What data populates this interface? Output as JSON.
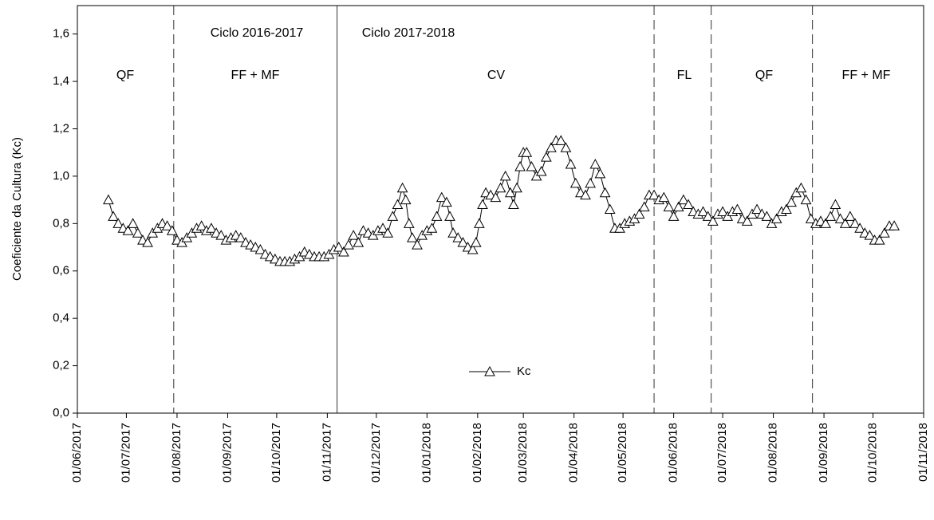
{
  "chart_data": {
    "type": "line",
    "ylabel": "Coeficiente da Cultura (Kc)",
    "xlim": [
      "01/06/2017",
      "01/11/2018"
    ],
    "xticks": [
      "01/06/2017",
      "01/07/2017",
      "01/08/2017",
      "01/09/2017",
      "01/10/2017",
      "01/11/2017",
      "01/12/2017",
      "01/01/2018",
      "01/02/2018",
      "01/03/2018",
      "01/04/2018",
      "01/05/2018",
      "01/06/2018",
      "01/07/2018",
      "01/08/2018",
      "01/09/2018",
      "01/10/2018",
      "01/11/2018"
    ],
    "ylim": [
      0,
      1.72
    ],
    "yticks": [
      {
        "value": 0,
        "label": "0,0"
      },
      {
        "value": 0.2,
        "label": "0,2"
      },
      {
        "value": 0.4,
        "label": "0,4"
      },
      {
        "value": 0.6,
        "label": "0,6"
      },
      {
        "value": 0.8,
        "label": "0,8"
      },
      {
        "value": 1.0,
        "label": "1,0"
      },
      {
        "value": 1.2,
        "label": "1,2"
      },
      {
        "value": 1.4,
        "label": "1,4"
      },
      {
        "value": 1.6,
        "label": "1,6"
      }
    ],
    "legend": "lower center",
    "phase_lines": [
      {
        "x": "30/07/2017",
        "style": "dashed"
      },
      {
        "x": "07/11/2017",
        "style": "solid"
      },
      {
        "x": "20/05/2018",
        "style": "dashed"
      },
      {
        "x": "24/06/2018",
        "style": "dashed"
      },
      {
        "x": "25/08/2018",
        "style": "dashed"
      }
    ],
    "annotations": [
      "QF",
      "FF + MF",
      "Ciclo 2016-2017",
      "Ciclo 2017-2018",
      "CV",
      "FL",
      "QF",
      "FF + MF"
    ],
    "x": [
      "20/06/2017",
      "23/06/2017",
      "26/06/2017",
      "29/06/2017",
      "02/07/2017",
      "05/07/2017",
      "08/07/2017",
      "11/07/2017",
      "14/07/2017",
      "17/07/2017",
      "20/07/2017",
      "23/07/2017",
      "26/07/2017",
      "29/07/2017",
      "01/08/2017",
      "04/08/2017",
      "07/08/2017",
      "10/08/2017",
      "13/08/2017",
      "16/08/2017",
      "19/08/2017",
      "22/08/2017",
      "25/08/2017",
      "28/08/2017",
      "31/08/2017",
      "03/09/2017",
      "06/09/2017",
      "09/09/2017",
      "12/09/2017",
      "15/09/2017",
      "18/09/2017",
      "21/09/2017",
      "24/09/2017",
      "27/09/2017",
      "30/09/2017",
      "03/10/2017",
      "06/10/2017",
      "09/10/2017",
      "12/10/2017",
      "15/10/2017",
      "18/10/2017",
      "21/10/2017",
      "24/10/2017",
      "27/10/2017",
      "30/10/2017",
      "02/11/2017",
      "05/11/2017",
      "08/11/2017",
      "11/11/2017",
      "14/11/2017",
      "17/11/2017",
      "20/11/2017",
      "23/11/2017",
      "26/11/2017",
      "29/11/2017",
      "02/12/2017",
      "05/12/2017",
      "08/12/2017",
      "11/12/2017",
      "14/12/2017",
      "17/12/2017",
      "19/12/2017",
      "21/12/2017",
      "23/12/2017",
      "26/12/2017",
      "29/12/2017",
      "01/01/2018",
      "04/01/2018",
      "07/01/2018",
      "10/01/2018",
      "13/01/2018",
      "15/01/2018",
      "17/01/2018",
      "20/01/2018",
      "23/01/2018",
      "26/01/2018",
      "29/01/2018",
      "31/01/2018",
      "02/02/2018",
      "04/02/2018",
      "06/02/2018",
      "09/02/2018",
      "12/02/2018",
      "15/02/2018",
      "18/02/2018",
      "21/02/2018",
      "23/02/2018",
      "25/02/2018",
      "27/02/2018",
      "01/03/2018",
      "03/03/2018",
      "06/03/2018",
      "09/03/2018",
      "12/03/2018",
      "15/03/2018",
      "18/03/2018",
      "21/03/2018",
      "24/03/2018",
      "27/03/2018",
      "30/03/2018",
      "02/04/2018",
      "05/04/2018",
      "08/04/2018",
      "11/04/2018",
      "14/04/2018",
      "17/04/2018",
      "20/04/2018",
      "23/04/2018",
      "26/04/2018",
      "29/04/2018",
      "02/05/2018",
      "05/05/2018",
      "08/05/2018",
      "11/05/2018",
      "14/05/2018",
      "17/05/2018",
      "20/05/2018",
      "23/05/2018",
      "26/05/2018",
      "29/05/2018",
      "01/06/2018",
      "04/06/2018",
      "07/06/2018",
      "10/06/2018",
      "13/06/2018",
      "16/06/2018",
      "19/06/2018",
      "22/06/2018",
      "25/06/2018",
      "28/06/2018",
      "01/07/2018",
      "04/07/2018",
      "07/07/2018",
      "10/07/2018",
      "13/07/2018",
      "16/07/2018",
      "19/07/2018",
      "22/07/2018",
      "25/07/2018",
      "28/07/2018",
      "31/07/2018",
      "03/08/2018",
      "06/08/2018",
      "09/08/2018",
      "12/08/2018",
      "15/08/2018",
      "18/08/2018",
      "21/08/2018",
      "24/08/2018",
      "27/08/2018",
      "30/08/2018",
      "02/09/2018",
      "05/09/2018",
      "08/09/2018",
      "11/09/2018",
      "14/09/2018",
      "17/09/2018",
      "20/09/2018",
      "23/09/2018",
      "26/09/2018",
      "29/09/2018",
      "02/10/2018",
      "05/10/2018",
      "08/10/2018",
      "11/10/2018",
      "14/10/2018"
    ],
    "series": [
      {
        "name": "Kc",
        "color": "#000000",
        "values": [
          0.9,
          0.83,
          0.8,
          0.78,
          0.77,
          0.8,
          0.76,
          0.73,
          0.72,
          0.76,
          0.78,
          0.8,
          0.79,
          0.77,
          0.73,
          0.72,
          0.74,
          0.76,
          0.78,
          0.79,
          0.77,
          0.78,
          0.76,
          0.75,
          0.73,
          0.74,
          0.75,
          0.74,
          0.72,
          0.71,
          0.7,
          0.69,
          0.67,
          0.66,
          0.65,
          0.64,
          0.64,
          0.64,
          0.65,
          0.66,
          0.68,
          0.67,
          0.66,
          0.66,
          0.66,
          0.67,
          0.69,
          0.7,
          0.68,
          0.71,
          0.75,
          0.72,
          0.77,
          0.76,
          0.75,
          0.77,
          0.78,
          0.76,
          0.83,
          0.88,
          0.95,
          0.9,
          0.8,
          0.74,
          0.71,
          0.75,
          0.77,
          0.78,
          0.83,
          0.91,
          0.89,
          0.83,
          0.76,
          0.74,
          0.72,
          0.7,
          0.69,
          0.72,
          0.8,
          0.88,
          0.93,
          0.92,
          0.91,
          0.95,
          1.0,
          0.93,
          0.88,
          0.95,
          1.04,
          1.1,
          1.1,
          1.04,
          1.0,
          1.02,
          1.08,
          1.12,
          1.15,
          1.15,
          1.12,
          1.05,
          0.97,
          0.93,
          0.92,
          0.97,
          1.05,
          1.01,
          0.93,
          0.86,
          0.78,
          0.78,
          0.8,
          0.81,
          0.82,
          0.84,
          0.87,
          0.92,
          0.92,
          0.9,
          0.91,
          0.87,
          0.83,
          0.87,
          0.9,
          0.88,
          0.85,
          0.84,
          0.85,
          0.83,
          0.81,
          0.84,
          0.85,
          0.83,
          0.85,
          0.86,
          0.82,
          0.81,
          0.84,
          0.86,
          0.84,
          0.83,
          0.8,
          0.82,
          0.85,
          0.86,
          0.89,
          0.93,
          0.95,
          0.9,
          0.82,
          0.8,
          0.81,
          0.8,
          0.83,
          0.88,
          0.82,
          0.8,
          0.83,
          0.8,
          0.78,
          0.76,
          0.75,
          0.73,
          0.73,
          0.76,
          0.79,
          0.79
        ]
      }
    ]
  }
}
